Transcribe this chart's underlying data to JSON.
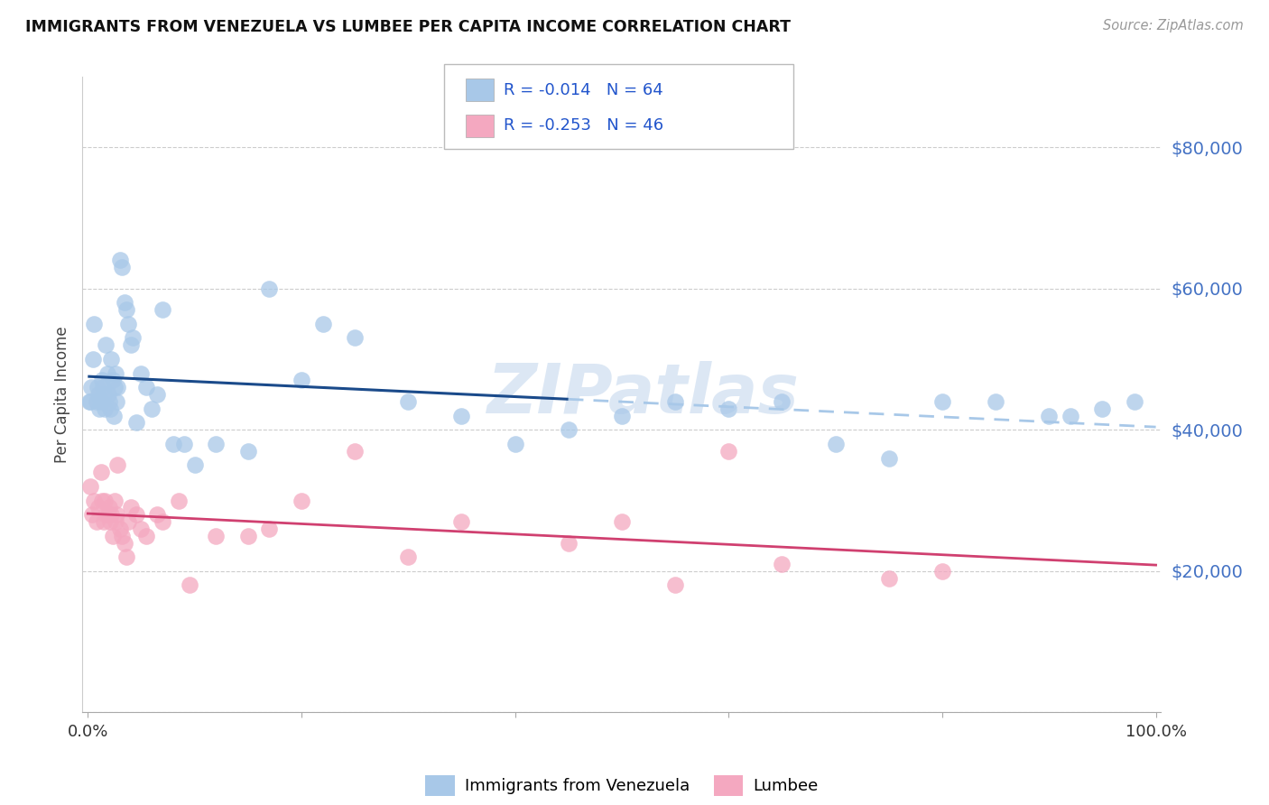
{
  "title": "IMMIGRANTS FROM VENEZUELA VS LUMBEE PER CAPITA INCOME CORRELATION CHART",
  "source": "Source: ZipAtlas.com",
  "ylabel": "Per Capita Income",
  "legend_label1": "Immigrants from Venezuela",
  "legend_label2": "Lumbee",
  "r1": "-0.014",
  "n1": "64",
  "r2": "-0.253",
  "n2": "46",
  "color_blue": "#a8c8e8",
  "color_pink": "#f4a8c0",
  "line_color_blue": "#1a4a8a",
  "line_color_pink": "#d04070",
  "watermark_color": "#c5d8ee",
  "blue_x": [
    0.15,
    0.25,
    0.35,
    0.5,
    0.6,
    0.8,
    0.9,
    1.0,
    1.1,
    1.2,
    1.3,
    1.4,
    1.5,
    1.6,
    1.7,
    1.8,
    1.9,
    2.0,
    2.1,
    2.2,
    2.3,
    2.4,
    2.5,
    2.6,
    2.7,
    2.8,
    3.0,
    3.2,
    3.4,
    3.6,
    3.8,
    4.0,
    4.2,
    4.5,
    5.0,
    5.5,
    6.0,
    6.5,
    7.0,
    8.0,
    9.0,
    10.0,
    12.0,
    15.0,
    17.0,
    20.0,
    22.0,
    25.0,
    30.0,
    35.0,
    40.0,
    45.0,
    50.0,
    55.0,
    60.0,
    65.0,
    70.0,
    75.0,
    80.0,
    85.0,
    90.0,
    92.0,
    95.0,
    98.0
  ],
  "blue_y": [
    44000,
    44000,
    46000,
    50000,
    55000,
    44000,
    46000,
    45000,
    43000,
    44000,
    47000,
    46000,
    45000,
    43000,
    52000,
    48000,
    45000,
    44000,
    43000,
    50000,
    47000,
    42000,
    46000,
    48000,
    44000,
    46000,
    64000,
    63000,
    58000,
    57000,
    55000,
    52000,
    53000,
    41000,
    48000,
    46000,
    43000,
    45000,
    57000,
    38000,
    38000,
    35000,
    38000,
    37000,
    60000,
    47000,
    55000,
    53000,
    44000,
    42000,
    38000,
    40000,
    42000,
    44000,
    43000,
    44000,
    38000,
    36000,
    44000,
    44000,
    42000,
    42000,
    43000,
    44000
  ],
  "pink_x": [
    0.2,
    0.4,
    0.6,
    0.8,
    1.0,
    1.2,
    1.3,
    1.5,
    1.6,
    1.7,
    1.9,
    2.0,
    2.1,
    2.2,
    2.3,
    2.5,
    2.6,
    2.7,
    2.8,
    3.0,
    3.2,
    3.4,
    3.6,
    3.8,
    4.0,
    4.5,
    5.0,
    5.5,
    6.5,
    7.0,
    8.5,
    9.5,
    12.0,
    15.0,
    17.0,
    20.0,
    25.0,
    30.0,
    35.0,
    45.0,
    50.0,
    55.0,
    60.0,
    65.0,
    75.0,
    80.0
  ],
  "pink_y": [
    32000,
    28000,
    30000,
    27000,
    29000,
    34000,
    30000,
    27000,
    30000,
    28000,
    28000,
    29000,
    27000,
    28000,
    25000,
    30000,
    27000,
    28000,
    35000,
    26000,
    25000,
    24000,
    22000,
    27000,
    29000,
    28000,
    26000,
    25000,
    28000,
    27000,
    30000,
    18000,
    25000,
    25000,
    26000,
    30000,
    37000,
    22000,
    27000,
    24000,
    27000,
    18000,
    37000,
    21000,
    19000,
    20000
  ],
  "ylim": [
    0,
    90000
  ],
  "xlim": [
    -0.5,
    100.5
  ],
  "yticks": [
    0,
    20000,
    40000,
    60000,
    80000
  ],
  "ytick_labels": [
    "",
    "$20,000",
    "$40,000",
    "$60,000",
    "$80,000"
  ]
}
